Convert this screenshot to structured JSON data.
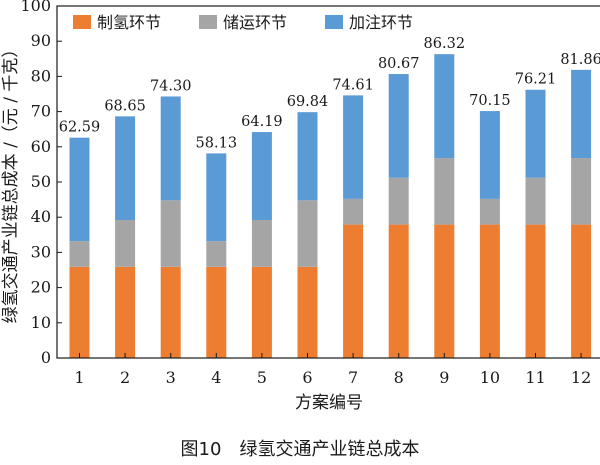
{
  "chart_data": {
    "type": "bar",
    "stacked": true,
    "categories": [
      "1",
      "2",
      "3",
      "4",
      "5",
      "6",
      "7",
      "8",
      "9",
      "10",
      "11",
      "12"
    ],
    "series": [
      {
        "name": "制氢环节",
        "color": "#ED7D31",
        "values": [
          25.9,
          25.9,
          25.9,
          25.9,
          25.9,
          25.9,
          37.9,
          37.9,
          37.9,
          37.9,
          37.9,
          37.9
        ]
      },
      {
        "name": "储运环节",
        "color": "#A5A5A5",
        "values": [
          7.3,
          13.3,
          18.9,
          7.3,
          13.3,
          18.9,
          7.3,
          13.3,
          18.9,
          7.3,
          13.3,
          18.9
        ]
      },
      {
        "name": "加注环节",
        "color": "#5B9BD5",
        "values": [
          29.39,
          29.45,
          29.5,
          24.93,
          24.99,
          25.04,
          29.41,
          29.47,
          29.52,
          24.95,
          25.01,
          25.06
        ]
      }
    ],
    "totals": [
      "62.59",
      "68.65",
      "74.30",
      "58.13",
      "64.19",
      "69.84",
      "74.61",
      "80.67",
      "86.32",
      "70.15",
      "76.21",
      "81.86"
    ],
    "xlabel": "方案编号",
    "ylabel": "绿氢交通产业链总成本 /（元 / 千克）",
    "ylim": [
      0,
      100
    ],
    "yticks": [
      "0",
      "10",
      "20",
      "30",
      "40",
      "50",
      "60",
      "70",
      "80",
      "90",
      "100"
    ],
    "legend_position": "top-left",
    "grid": false,
    "caption": "图10　绿氢交通产业链总成本"
  }
}
